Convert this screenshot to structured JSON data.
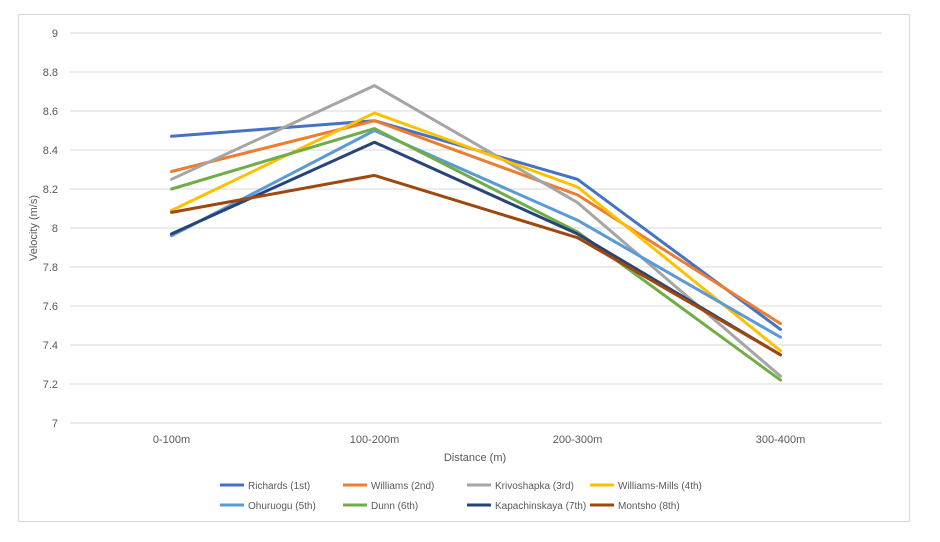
{
  "chart_data": {
    "type": "line",
    "categories": [
      "0-100m",
      "100-200m",
      "200-300m",
      "300-400m"
    ],
    "xlabel": "Distance (m)",
    "ylabel": "Velocity (m/s)",
    "ylim": [
      7,
      9
    ],
    "yticks": [
      "7",
      "7.2",
      "7.4",
      "7.6",
      "7.8",
      "8",
      "8.2",
      "8.4",
      "8.6",
      "8.8",
      "9"
    ],
    "grid": true,
    "legend_position": "bottom",
    "series": [
      {
        "name": "Richards (1st)",
        "color": "#4472C4",
        "values": [
          8.47,
          8.55,
          8.25,
          7.48
        ]
      },
      {
        "name": "Williams (2nd)",
        "color": "#ED7D31",
        "values": [
          8.29,
          8.55,
          8.17,
          7.51
        ]
      },
      {
        "name": "Krivoshapka (3rd)",
        "color": "#A5A5A5",
        "values": [
          8.25,
          8.73,
          8.13,
          7.24
        ]
      },
      {
        "name": "Williams-Mills (4th)",
        "color": "#FFC000",
        "values": [
          8.09,
          8.59,
          8.21,
          7.37
        ]
      },
      {
        "name": "Ohuruogu (5th)",
        "color": "#5B9BD5",
        "values": [
          7.96,
          8.5,
          8.04,
          7.44
        ]
      },
      {
        "name": "Dunn (6th)",
        "color": "#70AD47",
        "values": [
          8.2,
          8.51,
          7.98,
          7.22
        ]
      },
      {
        "name": "Kapachinskaya (7th)",
        "color": "#264478",
        "values": [
          7.97,
          8.44,
          7.97,
          7.35
        ]
      },
      {
        "name": "Montsho (8th)",
        "color": "#9E480E",
        "values": [
          8.08,
          8.27,
          7.95,
          7.35
        ]
      }
    ]
  }
}
